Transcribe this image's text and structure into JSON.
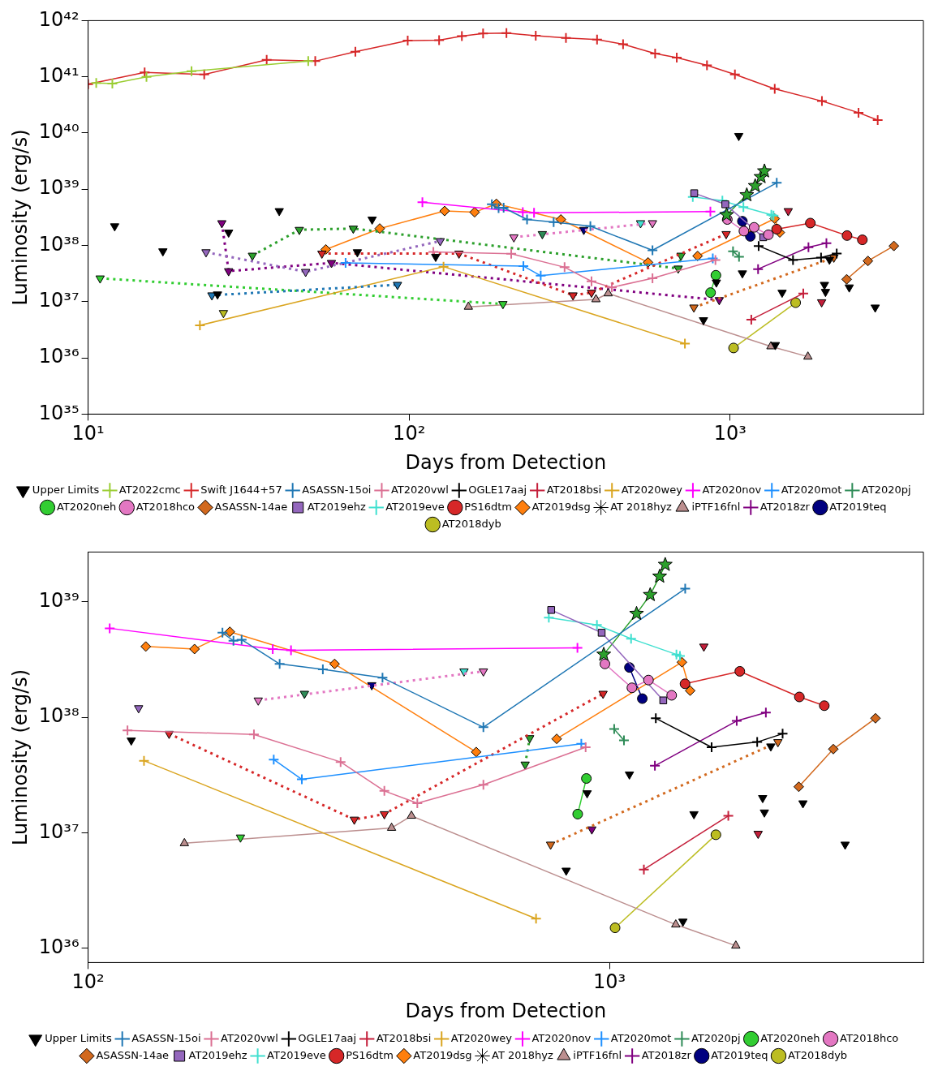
{
  "chart_data": [
    {
      "type": "line",
      "xlabel": "Days from Detection",
      "ylabel": "Luminosity (erg/s)",
      "log": "xy",
      "legend": "bottom",
      "xlim": [
        10,
        4000
      ],
      "ylim": [
        1e+35,
        1e+42
      ],
      "xticks": [
        {
          "value": 10,
          "label": "10¹"
        },
        {
          "value": 100,
          "label": "10²"
        },
        {
          "value": 1000,
          "label": "10³"
        }
      ],
      "yticks": [
        {
          "value": 1e+35,
          "label": "10³⁵"
        },
        {
          "value": 1e+36,
          "label": "10³⁶"
        },
        {
          "value": 1e+37,
          "label": "10³⁷"
        },
        {
          "value": 1e+38,
          "label": "10³⁸"
        },
        {
          "value": 1e+39,
          "label": "10³⁹"
        },
        {
          "value": 1e+40,
          "label": "10⁴⁰"
        },
        {
          "value": 1e+41,
          "label": "10⁴¹"
        },
        {
          "value": 1e+42,
          "label": "10⁴²"
        }
      ],
      "series": [
        {
          "name": "Upper Limits",
          "type": "scatter",
          "marker": "triangle",
          "color": "#000000",
          "x": [
            12.1,
            17.1,
            25.3,
            39.4,
            69.0,
            76.7,
            121,
            826,
            906,
            1064,
            1092,
            1383,
            1452,
            1967,
            1982,
            2039,
            2350,
            2831
          ],
          "values": [
            2.2e+38,
            7.9e+37,
            1.35e+37,
            4.1e+38,
            7.6e+37,
            2.9e+38,
            6.3e+37,
            4.7e+36,
            2.2e+37,
            8.9e+39,
            3.2e+37,
            1.7e+36,
            1.45e+37,
            2e+37,
            1.5e+37,
            5.6e+37,
            1.8e+37,
            7.9e+36
          ]
        },
        {
          "name": "AT2022cmc",
          "type": "line",
          "marker": "cross",
          "line_style": "solid",
          "color": "#9acd32",
          "x": [
            10.6,
            11.9,
            15.2,
            21,
            48.5
          ],
          "values": [
            7.8e+40,
            7.6e+40,
            1e+41,
            1.26e+41,
            1.9e+41
          ]
        },
        {
          "name": "Swift J1644+57",
          "type": "line",
          "marker": "cross",
          "line_style": "solid",
          "color": "#d62728",
          "x": [
            10,
            15,
            23,
            36,
            51,
            68,
            99,
            124,
            146,
            170,
            201,
            248,
            308,
            385,
            464,
            584,
            682,
            847,
            1035,
            1377,
            1932,
            2512,
            2882
          ],
          "values": [
            7.4e+40,
            1.2e+41,
            1.1e+41,
            2e+41,
            1.9e+41,
            2.8e+41,
            4.4e+41,
            4.5e+41,
            5.3e+41,
            5.9e+41,
            6e+41,
            5.4e+41,
            4.9e+41,
            4.6e+41,
            3.8e+41,
            2.6e+41,
            2.2e+41,
            1.6e+41,
            1.1e+41,
            6.1e+40,
            3.7e+40,
            2.3e+40,
            1.7e+40
          ]
        },
        {
          "name": "ASASSN-15oi",
          "type": "line",
          "marker": "cross",
          "line_style": "solid",
          "color": "#1f77b4",
          "x": [
            181,
            190,
            197,
            233,
            282,
            367,
            573,
            1397
          ],
          "values": [
            5.4e+38,
            4.6e+38,
            4.7e+38,
            2.9e+38,
            2.6e+38,
            2.2e+38,
            8.2e+37,
            1.3e+39
          ]
        },
        {
          "type": "line",
          "marker": "triangle",
          "line_style": "dotted",
          "color": "#1f77b4",
          "x": [
            24.3,
            92
          ],
          "values": [
            1.3e+37,
            2e+37
          ]
        },
        {
          "name": "AT2020vwl",
          "type": "line",
          "marker": "cross",
          "line_style": "solid",
          "color": "#db7093",
          "x": [
            119,
            208,
            305,
            370,
            428,
            573,
            900
          ],
          "values": [
            7.7e+37,
            7.1e+37,
            4.1e+37,
            2.3e+37,
            1.8e+37,
            2.6e+37,
            5.5e+37
          ]
        },
        {
          "name": "OGLE17aaj",
          "type": "line",
          "marker": "cross",
          "line_style": "solid",
          "color": "#000000",
          "x": [
            1227,
            1570,
            1920,
            2148
          ],
          "values": [
            9.8e+37,
            5.5e+37,
            6.1e+37,
            7.2e+37
          ]
        },
        {
          "type": "scatter",
          "marker": "triangle",
          "color": "#000000",
          "x": [
            27.4
          ],
          "values": [
            1.7e+38
          ]
        },
        {
          "name": "AT2018bsi",
          "type": "line",
          "marker": "cross",
          "line_style": "solid",
          "color": "#c41e3a",
          "x": [
            1164,
            1690
          ],
          "values": [
            4.8e+36,
            1.4e+37
          ]
        },
        {
          "type": "scatter",
          "marker": "triangle",
          "color": "#c41e3a",
          "x": [
            1517,
            1928
          ],
          "values": [
            4.1e+38,
            9.8e+36
          ]
        },
        {
          "name": "AT2020wey",
          "type": "line",
          "marker": "cross",
          "line_style": "solid",
          "color": "#daa520",
          "x": [
            22.3,
            128,
            723
          ],
          "values": [
            3.8e+36,
            4.2e+37,
            1.8e+36
          ]
        },
        {
          "name": "AT2020nov",
          "type": "line",
          "marker": "cross",
          "line_style": "solid",
          "color": "#ff00ff",
          "x": [
            110,
            226,
            245,
            868
          ],
          "values": [
            5.9e+38,
            3.9e+38,
            3.8e+38,
            4e+38
          ]
        },
        {
          "name": "AT2020mot",
          "type": "line",
          "marker": "cross",
          "line_style": "solid",
          "color": "#1e90ff",
          "x": [
            63.4,
            227,
            257,
            883
          ],
          "values": [
            4.9e+37,
            4.3e+37,
            2.9e+37,
            5.9e+37
          ]
        },
        {
          "name": "AT2020pj",
          "type": "line",
          "marker": "cross",
          "line_style": "solid",
          "color": "#2e8b57",
          "x": [
            1021,
            1066
          ],
          "values": [
            7.9e+37,
            6.3e+37
          ]
        },
        {
          "type": "scatter",
          "marker": "triangle",
          "color": "#2e8b57",
          "x": [
            260
          ],
          "values": [
            1.6e+38
          ]
        },
        {
          "name": "AT2020neh",
          "type": "line",
          "marker": "circle",
          "line_style": "solid",
          "color": "#32cd32",
          "x": [
            869,
            903
          ],
          "values": [
            1.45e+37,
            2.95e+37
          ]
        },
        {
          "type": "line",
          "marker": "triangle",
          "line_style": "dotted",
          "color": "#32cd32",
          "x": [
            10.9,
            196
          ],
          "values": [
            2.6e+37,
            9.1e+36
          ]
        },
        {
          "name": "AT2018hco",
          "type": "line",
          "marker": "circle",
          "line_style": "solid",
          "color": "#e377c2",
          "x": [
            980,
            1104,
            1188,
            1316
          ],
          "values": [
            2.9e+38,
            1.8e+38,
            2.1e+38,
            1.55e+38
          ]
        },
        {
          "type": "line",
          "marker": "triangle",
          "line_style": "dotted",
          "color": "#e377c2",
          "x": [
            212,
            573
          ],
          "values": [
            1.4e+38,
            2.5e+38
          ]
        },
        {
          "name": "ASASSN-14ae",
          "type": "line",
          "marker": "diamond",
          "line_style": "solid",
          "color": "#d2691e",
          "x": [
            2307,
            2687,
            3237
          ],
          "values": [
            2.5e+37,
            5.3e+37,
            9.8e+37
          ]
        },
        {
          "type": "line",
          "marker": "triangle",
          "line_style": "dotted",
          "color": "#d2691e",
          "x": [
            771,
            2104
          ],
          "values": [
            7.9e+36,
            6.1e+37
          ]
        },
        {
          "name": "AT2019ehz",
          "type": "line",
          "marker": "square",
          "line_style": "solid",
          "color": "#9467bd",
          "x": [
            773,
            966,
            1268
          ],
          "values": [
            8.5e+38,
            5.4e+38,
            1.4e+38
          ]
        },
        {
          "type": "line",
          "marker": "triangle",
          "line_style": "dotted",
          "color": "#9467bd",
          "x": [
            23.3,
            47.6,
            125
          ],
          "values": [
            7.6e+37,
            3.4e+37,
            1.2e+38
          ]
        },
        {
          "name": "AT2019eve",
          "type": "line",
          "marker": "cross",
          "line_style": "solid",
          "color": "#40e0d0",
          "x": [
            765,
            946,
            1100,
            1344,
            1365
          ],
          "values": [
            7.3e+38,
            6.3e+38,
            4.8e+38,
            3.5e+38,
            3.4e+38
          ]
        },
        {
          "type": "scatter",
          "marker": "triangle",
          "color": "#40e0d0",
          "x": [
            526
          ],
          "values": [
            2.5e+38
          ]
        },
        {
          "name": "PS16dtm",
          "type": "line",
          "marker": "circle",
          "line_style": "solid",
          "color": "#d62728",
          "x": [
            1396,
            1778,
            2313,
            2582
          ],
          "values": [
            1.95e+38,
            2.5e+38,
            1.5e+38,
            1.26e+38
          ]
        },
        {
          "type": "line",
          "marker": "triangle",
          "line_style": "dotted",
          "color": "#d62728",
          "x": [
            53.5,
            143,
            324,
            370,
            972
          ],
          "values": [
            7.2e+37,
            7.2e+37,
            1.3e+37,
            1.45e+37,
            1.6e+38
          ]
        },
        {
          "name": "AT2019dsg",
          "type": "line",
          "marker": "diamond",
          "line_style": "solid",
          "color": "#ff7f0e",
          "x": [
            792,
            1377,
            1428
          ],
          "values": [
            6.5e+37,
            3e+38,
            1.7e+38
          ]
        },
        {
          "name": "AT 2018hyz",
          "type": "line",
          "marker": "star",
          "line_style": "solid",
          "color": "#2ca02c",
          "x": [
            975,
            1127,
            1197,
            1248,
            1279
          ],
          "values": [
            3.5e+38,
            7.9e+38,
            1.15e+39,
            1.66e+39,
            2.1e+39
          ]
        },
        {
          "type": "line",
          "marker": "triangle",
          "line_style": "dotted",
          "color": "#2ca02c",
          "x": [
            32.5,
            45.5,
            67,
            689,
            703
          ],
          "values": [
            6.6e+37,
            1.9e+38,
            2e+38,
            3.9e+37,
            6.6e+37
          ]
        },
        {
          "name": "iPTF16fnl",
          "type": "line",
          "marker": "triangle",
          "line_style": "solid",
          "color": "#bc8f8f",
          "x": [
            153,
            382,
            417,
            1340,
            1747
          ],
          "values": [
            8.1e+36,
            1.1e+37,
            1.4e+37,
            1.6e+36,
            1.05e+36
          ]
        },
        {
          "name": "AT2018zr",
          "type": "line",
          "marker": "cross",
          "line_style": "solid",
          "color": "#800080",
          "x": [
            1222,
            1754,
            1995
          ],
          "values": [
            3.8e+37,
            9.3e+37,
            1.1e+38
          ]
        },
        {
          "type": "line",
          "marker": "triangle",
          "line_style": "dotted",
          "color": "#800080",
          "x": [
            26.1,
            27.4,
            57.3,
            925
          ],
          "values": [
            2.5e+38,
            3.5e+37,
            4.9e+37,
            1.07e+37
          ]
        },
        {
          "name": "AT2019teq",
          "type": "line",
          "marker": "circle",
          "line_style": "solid",
          "color": "#000080",
          "x": [
            1092,
            1156
          ],
          "values": [
            2.7e+38,
            1.45e+38
          ]
        },
        {
          "type": "scatter",
          "marker": "triangle",
          "color": "#000080",
          "x": [
            350
          ],
          "values": [
            1.9e+38
          ]
        },
        {
          "name": "AT2018dyb",
          "type": "line",
          "marker": "circle",
          "line_style": "solid",
          "color": "#bcbd22",
          "x": [
            1025,
            1600
          ],
          "values": [
            1.5e+36,
            9.6e+36
          ]
        },
        {
          "type": "scatter",
          "marker": "triangle",
          "color": "#bcbd22",
          "x": [
            26.4
          ],
          "values": [
            6.3e+36
          ]
        },
        {
          "type": "line",
          "marker": "diamond",
          "line_style": "solid",
          "color": "#ff7f0e",
          "x": [
            55,
            81,
            129,
            160,
            187,
            297,
            555
          ],
          "values": [
            8.5e+37,
            2e+38,
            4.1e+38,
            3.9e+38,
            5.5e+38,
            2.9e+38,
            5e+37
          ]
        }
      ]
    },
    {
      "type": "line",
      "xlabel": "Days from Detection",
      "ylabel": "Luminosity (erg/s)",
      "log": "xy",
      "legend": "bottom",
      "xlim": [
        100,
        4000
      ],
      "ylim": [
        7.5e+35,
        2.7e+39
      ],
      "xticks": [
        {
          "value": 100,
          "label": "10²"
        },
        {
          "value": 1000,
          "label": "10³"
        }
      ],
      "yticks": [
        {
          "value": 1e+36,
          "label": "10³⁶"
        },
        {
          "value": 1e+37,
          "label": "10³⁷"
        },
        {
          "value": 1e+38,
          "label": "10³⁸"
        },
        {
          "value": 1e+39,
          "label": "10³⁹"
        }
      ],
      "series": [
        {
          "name": "Upper Limits",
          "type": "scatter",
          "marker": "triangle",
          "color": "#000000",
          "x": [
            121,
            826,
            906,
            1092,
            1383,
            1452,
            1967,
            1982,
            2039,
            2350,
            2831
          ],
          "values": [
            6.3e+37,
            4.7e+36,
            2.2e+37,
            3.2e+37,
            1.7e+36,
            1.45e+37,
            2e+37,
            1.5e+37,
            5.6e+37,
            1.8e+37,
            7.9e+36
          ]
        },
        {
          "name": "ASASSN-15oi",
          "type": "line",
          "marker": "cross",
          "line_style": "solid",
          "color": "#1f77b4",
          "x": [
            181,
            190,
            197,
            233,
            282,
            367,
            573,
            1397
          ],
          "values": [
            5.4e+38,
            4.6e+38,
            4.7e+38,
            2.9e+38,
            2.6e+38,
            2.2e+38,
            8.2e+37,
            1.3e+39
          ]
        },
        {
          "name": "AT2020vwl",
          "type": "line",
          "marker": "cross",
          "line_style": "solid",
          "color": "#db7093",
          "x": [
            119,
            208,
            305,
            370,
            428,
            573,
            900
          ],
          "values": [
            7.7e+37,
            7.1e+37,
            4.1e+37,
            2.3e+37,
            1.8e+37,
            2.6e+37,
            5.5e+37
          ]
        },
        {
          "name": "OGLE17aaj",
          "type": "line",
          "marker": "cross",
          "line_style": "solid",
          "color": "#000000",
          "x": [
            1227,
            1570,
            1920,
            2148
          ],
          "values": [
            9.8e+37,
            5.5e+37,
            6.1e+37,
            7.2e+37
          ]
        },
        {
          "name": "AT2018bsi",
          "type": "line",
          "marker": "cross",
          "line_style": "solid",
          "color": "#c41e3a",
          "x": [
            1164,
            1690
          ],
          "values": [
            4.8e+36,
            1.4e+37
          ]
        },
        {
          "type": "scatter",
          "marker": "triangle",
          "color": "#c41e3a",
          "x": [
            1517,
            1928
          ],
          "values": [
            4.1e+38,
            9.8e+36
          ]
        },
        {
          "name": "AT2020wey",
          "type": "line",
          "marker": "cross",
          "line_style": "solid",
          "color": "#daa520",
          "x": [
            128,
            723
          ],
          "values": [
            4.2e+37,
            1.8e+36
          ]
        },
        {
          "name": "AT2020nov",
          "type": "line",
          "marker": "cross",
          "line_style": "solid",
          "color": "#ff00ff",
          "x": [
            110,
            226,
            245,
            868
          ],
          "values": [
            5.9e+38,
            3.9e+38,
            3.8e+38,
            4e+38
          ]
        },
        {
          "name": "AT2020mot",
          "type": "line",
          "marker": "cross",
          "line_style": "solid",
          "color": "#1e90ff",
          "x": [
            227,
            257,
            883
          ],
          "values": [
            4.3e+37,
            2.9e+37,
            5.9e+37
          ]
        },
        {
          "name": "AT2020pj",
          "type": "line",
          "marker": "cross",
          "line_style": "solid",
          "color": "#2e8b57",
          "x": [
            1021,
            1066
          ],
          "values": [
            7.9e+37,
            6.3e+37
          ]
        },
        {
          "type": "scatter",
          "marker": "triangle",
          "color": "#2e8b57",
          "x": [
            260
          ],
          "values": [
            1.6e+38
          ]
        },
        {
          "name": "AT2020neh",
          "type": "line",
          "marker": "circle",
          "line_style": "solid",
          "color": "#32cd32",
          "x": [
            869,
            903
          ],
          "values": [
            1.45e+37,
            2.95e+37
          ]
        },
        {
          "type": "scatter",
          "marker": "triangle",
          "color": "#32cd32",
          "x": [
            196
          ],
          "values": [
            9.1e+36
          ]
        },
        {
          "name": "AT2018hco",
          "type": "line",
          "marker": "circle",
          "line_style": "solid",
          "color": "#e377c2",
          "x": [
            980,
            1104,
            1188,
            1316
          ],
          "values": [
            2.9e+38,
            1.8e+38,
            2.1e+38,
            1.55e+38
          ]
        },
        {
          "type": "line",
          "marker": "triangle",
          "line_style": "dotted",
          "color": "#e377c2",
          "x": [
            212,
            573
          ],
          "values": [
            1.4e+38,
            2.5e+38
          ]
        },
        {
          "name": "ASASSN-14ae",
          "type": "line",
          "marker": "diamond",
          "line_style": "solid",
          "color": "#d2691e",
          "x": [
            2307,
            2687,
            3237
          ],
          "values": [
            2.5e+37,
            5.3e+37,
            9.8e+37
          ]
        },
        {
          "type": "line",
          "marker": "triangle",
          "line_style": "dotted",
          "color": "#d2691e",
          "x": [
            771,
            2104
          ],
          "values": [
            7.9e+36,
            6.1e+37
          ]
        },
        {
          "name": "AT2019ehz",
          "type": "line",
          "marker": "square",
          "line_style": "solid",
          "color": "#9467bd",
          "x": [
            773,
            966,
            1268
          ],
          "values": [
            8.5e+38,
            5.4e+38,
            1.4e+38
          ]
        },
        {
          "type": "scatter",
          "marker": "triangle",
          "color": "#9467bd",
          "x": [
            125
          ],
          "values": [
            1.2e+38
          ]
        },
        {
          "name": "AT2019eve",
          "type": "line",
          "marker": "cross",
          "line_style": "solid",
          "color": "#40e0d0",
          "x": [
            765,
            946,
            1100,
            1344,
            1365
          ],
          "values": [
            7.3e+38,
            6.3e+38,
            4.8e+38,
            3.5e+38,
            3.4e+38
          ]
        },
        {
          "type": "scatter",
          "marker": "triangle",
          "color": "#40e0d0",
          "x": [
            526
          ],
          "values": [
            2.5e+38
          ]
        },
        {
          "name": "PS16dtm",
          "type": "line",
          "marker": "circle",
          "line_style": "solid",
          "color": "#d62728",
          "x": [
            1396,
            1778,
            2313,
            2582
          ],
          "values": [
            1.95e+38,
            2.5e+38,
            1.5e+38,
            1.26e+38
          ]
        },
        {
          "type": "line",
          "marker": "triangle",
          "line_style": "dotted",
          "color": "#d62728",
          "x": [
            143,
            324,
            370,
            972
          ],
          "values": [
            7.2e+37,
            1.3e+37,
            1.45e+37,
            1.6e+38
          ]
        },
        {
          "name": "AT2019dsg",
          "type": "line",
          "marker": "diamond",
          "line_style": "solid",
          "color": "#ff7f0e",
          "x": [
            792,
            1377,
            1428
          ],
          "values": [
            6.5e+37,
            3e+38,
            1.7e+38
          ]
        },
        {
          "name": "AT 2018hyz",
          "type": "line",
          "marker": "star",
          "line_style": "solid",
          "color": "#2ca02c",
          "x": [
            975,
            1127,
            1197,
            1248,
            1279
          ],
          "values": [
            3.5e+38,
            7.9e+38,
            1.15e+39,
            1.66e+39,
            2.1e+39
          ]
        },
        {
          "type": "line",
          "marker": "triangle",
          "line_style": "dotted",
          "color": "#2ca02c",
          "x": [
            689,
            703
          ],
          "values": [
            3.9e+37,
            6.6e+37
          ]
        },
        {
          "name": "iPTF16fnl",
          "type": "line",
          "marker": "triangle",
          "line_style": "solid",
          "color": "#bc8f8f",
          "x": [
            153,
            382,
            417,
            1340,
            1747
          ],
          "values": [
            8.1e+36,
            1.1e+37,
            1.4e+37,
            1.6e+36,
            1.05e+36
          ]
        },
        {
          "name": "AT2018zr",
          "type": "line",
          "marker": "cross",
          "line_style": "solid",
          "color": "#800080",
          "x": [
            1222,
            1754,
            1995
          ],
          "values": [
            3.8e+37,
            9.3e+37,
            1.1e+38
          ]
        },
        {
          "type": "scatter",
          "marker": "triangle",
          "color": "#800080",
          "x": [
            925
          ],
          "values": [
            1.07e+37
          ]
        },
        {
          "name": "AT2019teq",
          "type": "line",
          "marker": "circle",
          "line_style": "solid",
          "color": "#000080",
          "x": [
            1092,
            1156
          ],
          "values": [
            2.7e+38,
            1.45e+38
          ]
        },
        {
          "type": "scatter",
          "marker": "triangle",
          "color": "#000080",
          "x": [
            350
          ],
          "values": [
            1.9e+38
          ]
        },
        {
          "name": "AT2018dyb",
          "type": "line",
          "marker": "circle",
          "line_style": "solid",
          "color": "#bcbd22",
          "x": [
            1025,
            1600
          ],
          "values": [
            1.5e+36,
            9.6e+36
          ]
        },
        {
          "type": "line",
          "marker": "diamond",
          "line_style": "solid",
          "color": "#ff7f0e",
          "x": [
            129,
            160,
            187,
            297,
            555
          ],
          "values": [
            4.1e+38,
            3.9e+38,
            5.5e+38,
            2.9e+38,
            5e+37
          ]
        }
      ]
    }
  ]
}
